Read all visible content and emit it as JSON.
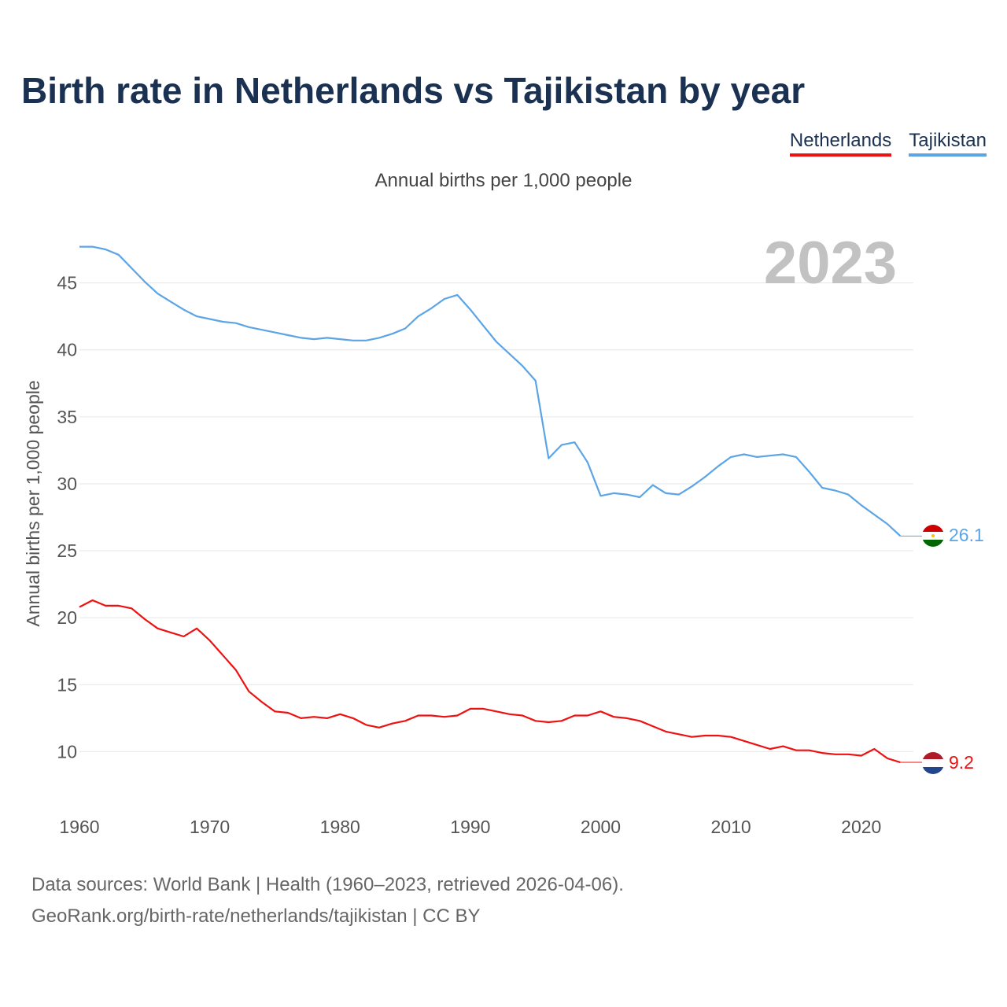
{
  "title": "Birth rate in Netherlands vs Tajikistan by year",
  "subtitle": "Annual births per 1,000 people",
  "legend": [
    {
      "name": "Netherlands",
      "color": "#ee1111"
    },
    {
      "name": "Tajikistan",
      "color": "#5ba4e6"
    }
  ],
  "sources": {
    "line1": "Data sources: World Bank | Health (1960–2023, retrieved 2026-04-06).",
    "line2": "GeoRank.org/birth-rate/netherlands/tajikistan | CC BY"
  },
  "chart_data": {
    "type": "line",
    "title": "Birth rate in Netherlands vs Tajikistan by year",
    "ylabel": "Annual births per 1,000 people",
    "xlabel": "",
    "year_label": "2023",
    "x": [
      1960,
      1961,
      1962,
      1963,
      1964,
      1965,
      1966,
      1967,
      1968,
      1969,
      1970,
      1971,
      1972,
      1973,
      1974,
      1975,
      1976,
      1977,
      1978,
      1979,
      1980,
      1981,
      1982,
      1983,
      1984,
      1985,
      1986,
      1987,
      1988,
      1989,
      1990,
      1991,
      1992,
      1993,
      1994,
      1995,
      1996,
      1997,
      1998,
      1999,
      2000,
      2001,
      2002,
      2003,
      2004,
      2005,
      2006,
      2007,
      2008,
      2009,
      2010,
      2011,
      2012,
      2013,
      2014,
      2015,
      2016,
      2017,
      2018,
      2019,
      2020,
      2021,
      2022,
      2023
    ],
    "xlim": [
      1960,
      2024
    ],
    "ylim": [
      6.5,
      48.5
    ],
    "xticks": [
      1960,
      1970,
      1980,
      1990,
      2000,
      2010,
      2020
    ],
    "yticks": [
      10,
      15,
      20,
      25,
      30,
      35,
      40,
      45
    ],
    "grid": true,
    "series": [
      {
        "name": "Netherlands",
        "color": "#ee1111",
        "end_label": "9.2",
        "values": [
          20.8,
          21.3,
          20.9,
          20.9,
          20.7,
          19.9,
          19.2,
          18.9,
          18.6,
          19.2,
          18.3,
          17.2,
          16.1,
          14.5,
          13.7,
          13.0,
          12.9,
          12.5,
          12.6,
          12.5,
          12.8,
          12.5,
          12.0,
          11.8,
          12.1,
          12.3,
          12.7,
          12.7,
          12.6,
          12.7,
          13.2,
          13.2,
          13.0,
          12.8,
          12.7,
          12.3,
          12.2,
          12.3,
          12.7,
          12.7,
          13.0,
          12.6,
          12.5,
          12.3,
          11.9,
          11.5,
          11.3,
          11.1,
          11.2,
          11.2,
          11.1,
          10.8,
          10.5,
          10.2,
          10.4,
          10.1,
          10.1,
          9.9,
          9.8,
          9.8,
          9.7,
          10.2,
          9.5,
          9.2
        ]
      },
      {
        "name": "Tajikistan",
        "color": "#5ba4e6",
        "end_label": "26.1",
        "values": [
          47.7,
          47.7,
          47.5,
          47.1,
          46.1,
          45.1,
          44.2,
          43.6,
          43.0,
          42.5,
          42.3,
          42.1,
          42.0,
          41.7,
          41.5,
          41.3,
          41.1,
          40.9,
          40.8,
          40.9,
          40.8,
          40.7,
          40.7,
          40.9,
          41.2,
          41.6,
          42.5,
          43.1,
          43.8,
          44.1,
          43.0,
          41.8,
          40.6,
          39.7,
          38.8,
          37.7,
          31.9,
          32.9,
          33.1,
          31.6,
          29.1,
          29.3,
          29.2,
          29.0,
          29.9,
          29.3,
          29.2,
          29.8,
          30.5,
          31.3,
          32.0,
          32.2,
          32.0,
          32.1,
          32.2,
          32.0,
          30.9,
          29.7,
          29.5,
          29.2,
          28.4,
          27.7,
          27.0,
          26.1
        ]
      }
    ]
  }
}
